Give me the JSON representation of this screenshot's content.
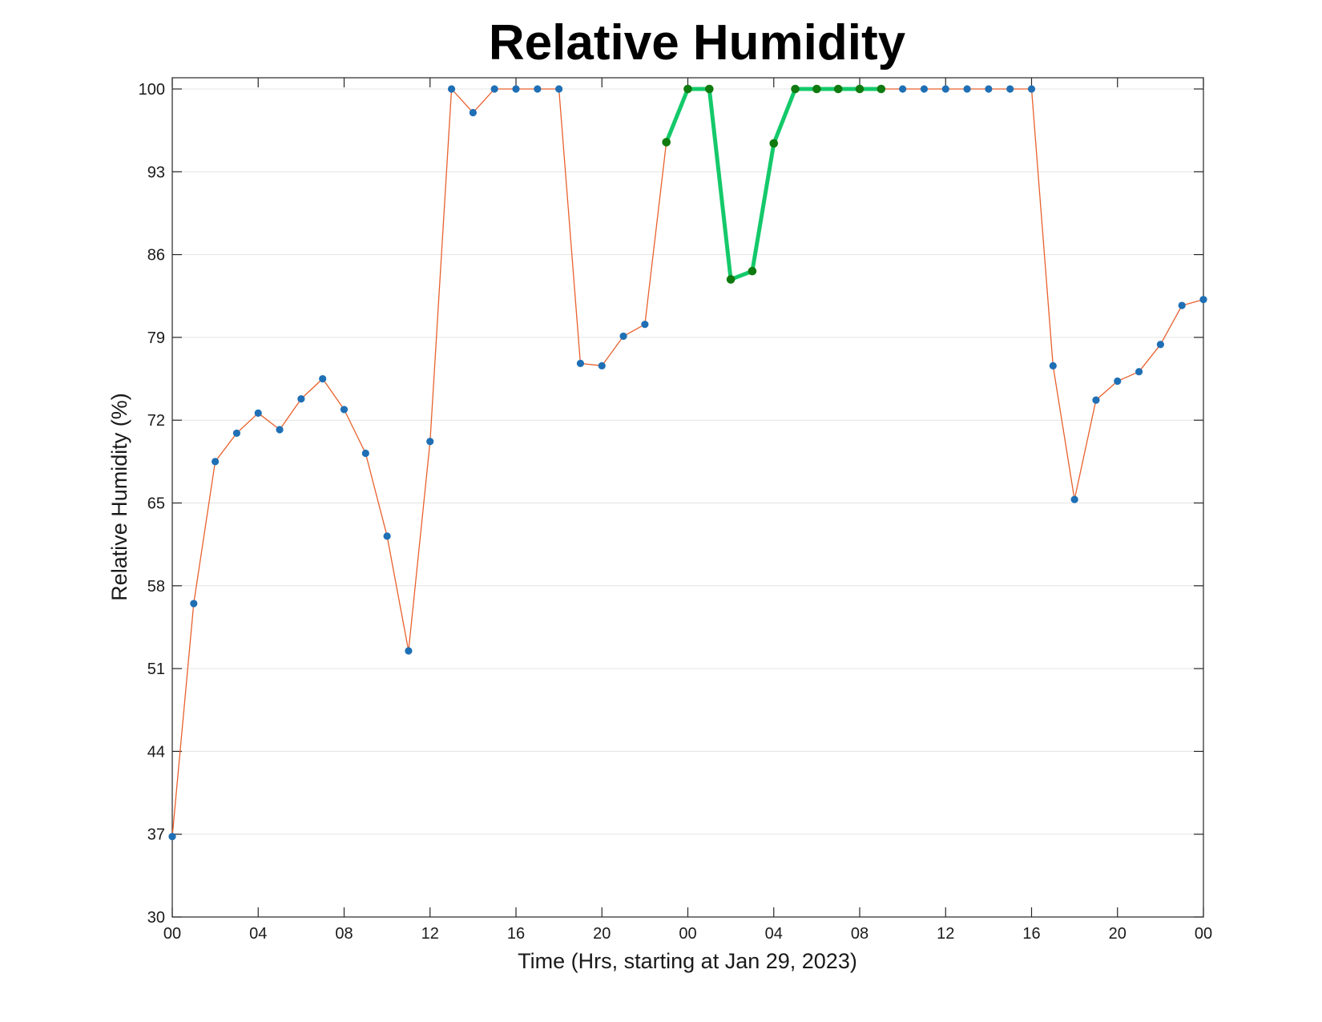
{
  "chart_data": {
    "type": "line",
    "title": "Relative Humidity",
    "xlabel": "Time (Hrs, starting at Jan 29, 2023)",
    "ylabel": "Relative Humidity (%)",
    "x_unit": "hours",
    "xlim": [
      0,
      48
    ],
    "ylim": [
      30,
      100
    ],
    "yticks": [
      30,
      37,
      44,
      51,
      58,
      65,
      72,
      79,
      86,
      93,
      100
    ],
    "xticks": [
      0,
      4,
      8,
      12,
      16,
      20,
      24,
      28,
      32,
      36,
      40,
      44,
      48
    ],
    "xtick_labels": [
      "00",
      "04",
      "08",
      "12",
      "16",
      "20",
      "00",
      "04",
      "08",
      "12",
      "16",
      "20",
      "00"
    ],
    "grid": "horizontal",
    "series": [
      {
        "line_color": "#e8602c",
        "marker_color": "#1f6fb5",
        "x": [
          0,
          1,
          2,
          3,
          4,
          5,
          6,
          7,
          8,
          9,
          10,
          11,
          12,
          13,
          14,
          15,
          16,
          17,
          18,
          19,
          20,
          21,
          22,
          23,
          24,
          25,
          26,
          27,
          28,
          29,
          30,
          31,
          32,
          33,
          34,
          35,
          36,
          37,
          38,
          39,
          40,
          41,
          42,
          43,
          44,
          45,
          46,
          47,
          48
        ],
        "values": [
          36.8,
          56.5,
          68.5,
          70.9,
          72.6,
          71.2,
          73.8,
          75.5,
          72.9,
          69.2,
          62.2,
          52.5,
          70.2,
          100,
          98,
          100,
          100,
          100,
          100,
          76.8,
          76.6,
          79.1,
          80.1,
          95.5,
          100,
          100,
          83.9,
          84.6,
          95.4,
          100,
          100,
          100,
          100,
          100,
          100,
          100,
          100,
          100,
          100,
          100,
          100,
          76.6,
          65.3,
          73.7,
          75.3,
          76.1,
          78.4,
          81.7,
          82.2
        ]
      },
      {
        "line_color": "#14c96a",
        "marker_color": "#0f7a0f",
        "x": [
          23,
          24,
          25,
          26,
          27,
          28,
          29,
          30,
          31,
          32,
          33
        ],
        "values": [
          95.5,
          100,
          100,
          83.9,
          84.6,
          95.4,
          100,
          100,
          100,
          100,
          100
        ]
      }
    ]
  }
}
